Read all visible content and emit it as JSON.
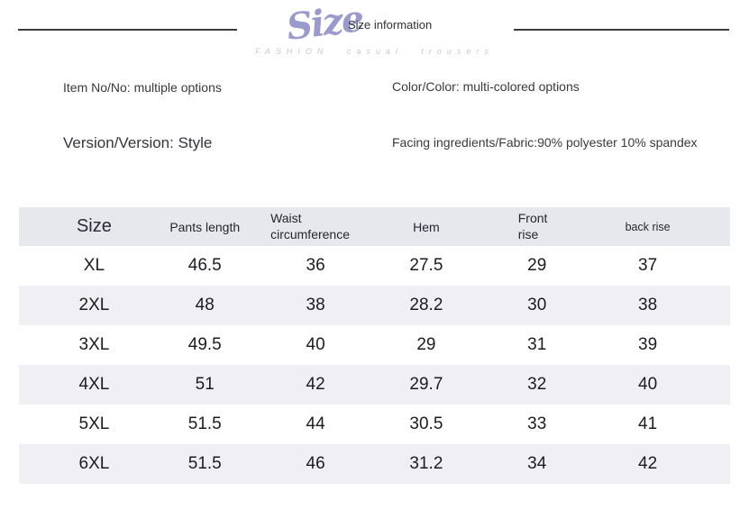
{
  "header": {
    "logo_text": "Size",
    "title": "Size information",
    "tagline": "FASHION casual trousers"
  },
  "product_info": {
    "item_no": "Item No/No: multiple options",
    "color": "Color/Color: multi-colored options",
    "version": "Version/Version: Style",
    "fabric": "Facing ingredients/Fabric:90% polyester 10% spandex"
  },
  "colors": {
    "logo_accent": "#9a9acd",
    "table_header_bg": "#e7e7ee",
    "row_alt_bg": "#f0f0f4",
    "rule_line": "#3c3c3c",
    "tagline_text": "#c9c9c9"
  },
  "chart_data": {
    "type": "table",
    "title": "Size information",
    "columns": [
      "Size",
      "Pants length",
      "Waist circumference",
      "Hem",
      "Front rise",
      "back rise"
    ],
    "rows": [
      [
        "XL",
        "46.5",
        "36",
        "27.5",
        "29",
        "37"
      ],
      [
        "2XL",
        "48",
        "38",
        "28.2",
        "30",
        "38"
      ],
      [
        "3XL",
        "49.5",
        "40",
        "29",
        "31",
        "39"
      ],
      [
        "4XL",
        "51",
        "42",
        "29.7",
        "32",
        "40"
      ],
      [
        "5XL",
        "51.5",
        "44",
        "30.5",
        "33",
        "41"
      ],
      [
        "6XL",
        "51.5",
        "46",
        "31.2",
        "34",
        "42"
      ]
    ]
  }
}
